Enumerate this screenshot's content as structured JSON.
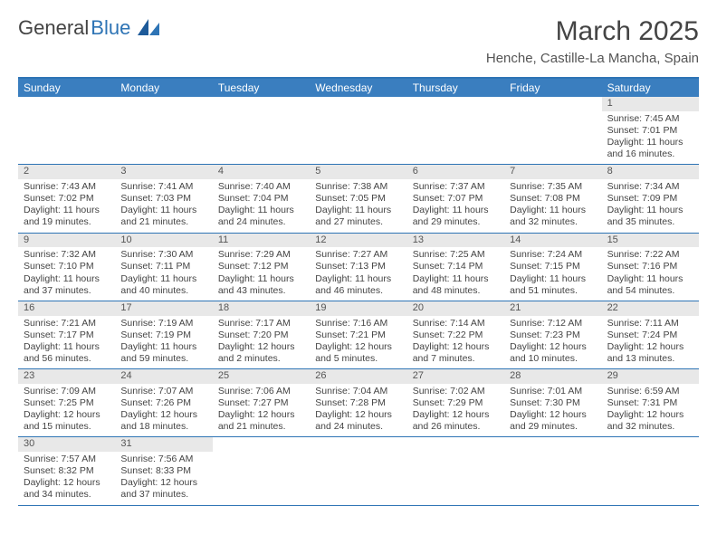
{
  "brand": {
    "name1": "General",
    "name2": "Blue",
    "color1": "#555555",
    "color2": "#2e74b5"
  },
  "title": "March 2025",
  "location": "Henche, Castille-La Mancha, Spain",
  "header_bg": "#3a7ebf",
  "border_color": "#2e74b5",
  "daynum_bg": "#e8e8e8",
  "days_of_week": [
    "Sunday",
    "Monday",
    "Tuesday",
    "Wednesday",
    "Thursday",
    "Friday",
    "Saturday"
  ],
  "weeks": [
    [
      {
        "n": "",
        "sr": "",
        "ss": "",
        "dl": ""
      },
      {
        "n": "",
        "sr": "",
        "ss": "",
        "dl": ""
      },
      {
        "n": "",
        "sr": "",
        "ss": "",
        "dl": ""
      },
      {
        "n": "",
        "sr": "",
        "ss": "",
        "dl": ""
      },
      {
        "n": "",
        "sr": "",
        "ss": "",
        "dl": ""
      },
      {
        "n": "",
        "sr": "",
        "ss": "",
        "dl": ""
      },
      {
        "n": "1",
        "sr": "Sunrise: 7:45 AM",
        "ss": "Sunset: 7:01 PM",
        "dl": "Daylight: 11 hours and 16 minutes."
      }
    ],
    [
      {
        "n": "2",
        "sr": "Sunrise: 7:43 AM",
        "ss": "Sunset: 7:02 PM",
        "dl": "Daylight: 11 hours and 19 minutes."
      },
      {
        "n": "3",
        "sr": "Sunrise: 7:41 AM",
        "ss": "Sunset: 7:03 PM",
        "dl": "Daylight: 11 hours and 21 minutes."
      },
      {
        "n": "4",
        "sr": "Sunrise: 7:40 AM",
        "ss": "Sunset: 7:04 PM",
        "dl": "Daylight: 11 hours and 24 minutes."
      },
      {
        "n": "5",
        "sr": "Sunrise: 7:38 AM",
        "ss": "Sunset: 7:05 PM",
        "dl": "Daylight: 11 hours and 27 minutes."
      },
      {
        "n": "6",
        "sr": "Sunrise: 7:37 AM",
        "ss": "Sunset: 7:07 PM",
        "dl": "Daylight: 11 hours and 29 minutes."
      },
      {
        "n": "7",
        "sr": "Sunrise: 7:35 AM",
        "ss": "Sunset: 7:08 PM",
        "dl": "Daylight: 11 hours and 32 minutes."
      },
      {
        "n": "8",
        "sr": "Sunrise: 7:34 AM",
        "ss": "Sunset: 7:09 PM",
        "dl": "Daylight: 11 hours and 35 minutes."
      }
    ],
    [
      {
        "n": "9",
        "sr": "Sunrise: 7:32 AM",
        "ss": "Sunset: 7:10 PM",
        "dl": "Daylight: 11 hours and 37 minutes."
      },
      {
        "n": "10",
        "sr": "Sunrise: 7:30 AM",
        "ss": "Sunset: 7:11 PM",
        "dl": "Daylight: 11 hours and 40 minutes."
      },
      {
        "n": "11",
        "sr": "Sunrise: 7:29 AM",
        "ss": "Sunset: 7:12 PM",
        "dl": "Daylight: 11 hours and 43 minutes."
      },
      {
        "n": "12",
        "sr": "Sunrise: 7:27 AM",
        "ss": "Sunset: 7:13 PM",
        "dl": "Daylight: 11 hours and 46 minutes."
      },
      {
        "n": "13",
        "sr": "Sunrise: 7:25 AM",
        "ss": "Sunset: 7:14 PM",
        "dl": "Daylight: 11 hours and 48 minutes."
      },
      {
        "n": "14",
        "sr": "Sunrise: 7:24 AM",
        "ss": "Sunset: 7:15 PM",
        "dl": "Daylight: 11 hours and 51 minutes."
      },
      {
        "n": "15",
        "sr": "Sunrise: 7:22 AM",
        "ss": "Sunset: 7:16 PM",
        "dl": "Daylight: 11 hours and 54 minutes."
      }
    ],
    [
      {
        "n": "16",
        "sr": "Sunrise: 7:21 AM",
        "ss": "Sunset: 7:17 PM",
        "dl": "Daylight: 11 hours and 56 minutes."
      },
      {
        "n": "17",
        "sr": "Sunrise: 7:19 AM",
        "ss": "Sunset: 7:19 PM",
        "dl": "Daylight: 11 hours and 59 minutes."
      },
      {
        "n": "18",
        "sr": "Sunrise: 7:17 AM",
        "ss": "Sunset: 7:20 PM",
        "dl": "Daylight: 12 hours and 2 minutes."
      },
      {
        "n": "19",
        "sr": "Sunrise: 7:16 AM",
        "ss": "Sunset: 7:21 PM",
        "dl": "Daylight: 12 hours and 5 minutes."
      },
      {
        "n": "20",
        "sr": "Sunrise: 7:14 AM",
        "ss": "Sunset: 7:22 PM",
        "dl": "Daylight: 12 hours and 7 minutes."
      },
      {
        "n": "21",
        "sr": "Sunrise: 7:12 AM",
        "ss": "Sunset: 7:23 PM",
        "dl": "Daylight: 12 hours and 10 minutes."
      },
      {
        "n": "22",
        "sr": "Sunrise: 7:11 AM",
        "ss": "Sunset: 7:24 PM",
        "dl": "Daylight: 12 hours and 13 minutes."
      }
    ],
    [
      {
        "n": "23",
        "sr": "Sunrise: 7:09 AM",
        "ss": "Sunset: 7:25 PM",
        "dl": "Daylight: 12 hours and 15 minutes."
      },
      {
        "n": "24",
        "sr": "Sunrise: 7:07 AM",
        "ss": "Sunset: 7:26 PM",
        "dl": "Daylight: 12 hours and 18 minutes."
      },
      {
        "n": "25",
        "sr": "Sunrise: 7:06 AM",
        "ss": "Sunset: 7:27 PM",
        "dl": "Daylight: 12 hours and 21 minutes."
      },
      {
        "n": "26",
        "sr": "Sunrise: 7:04 AM",
        "ss": "Sunset: 7:28 PM",
        "dl": "Daylight: 12 hours and 24 minutes."
      },
      {
        "n": "27",
        "sr": "Sunrise: 7:02 AM",
        "ss": "Sunset: 7:29 PM",
        "dl": "Daylight: 12 hours and 26 minutes."
      },
      {
        "n": "28",
        "sr": "Sunrise: 7:01 AM",
        "ss": "Sunset: 7:30 PM",
        "dl": "Daylight: 12 hours and 29 minutes."
      },
      {
        "n": "29",
        "sr": "Sunrise: 6:59 AM",
        "ss": "Sunset: 7:31 PM",
        "dl": "Daylight: 12 hours and 32 minutes."
      }
    ],
    [
      {
        "n": "30",
        "sr": "Sunrise: 7:57 AM",
        "ss": "Sunset: 8:32 PM",
        "dl": "Daylight: 12 hours and 34 minutes."
      },
      {
        "n": "31",
        "sr": "Sunrise: 7:56 AM",
        "ss": "Sunset: 8:33 PM",
        "dl": "Daylight: 12 hours and 37 minutes."
      },
      {
        "n": "",
        "sr": "",
        "ss": "",
        "dl": ""
      },
      {
        "n": "",
        "sr": "",
        "ss": "",
        "dl": ""
      },
      {
        "n": "",
        "sr": "",
        "ss": "",
        "dl": ""
      },
      {
        "n": "",
        "sr": "",
        "ss": "",
        "dl": ""
      },
      {
        "n": "",
        "sr": "",
        "ss": "",
        "dl": ""
      }
    ]
  ]
}
